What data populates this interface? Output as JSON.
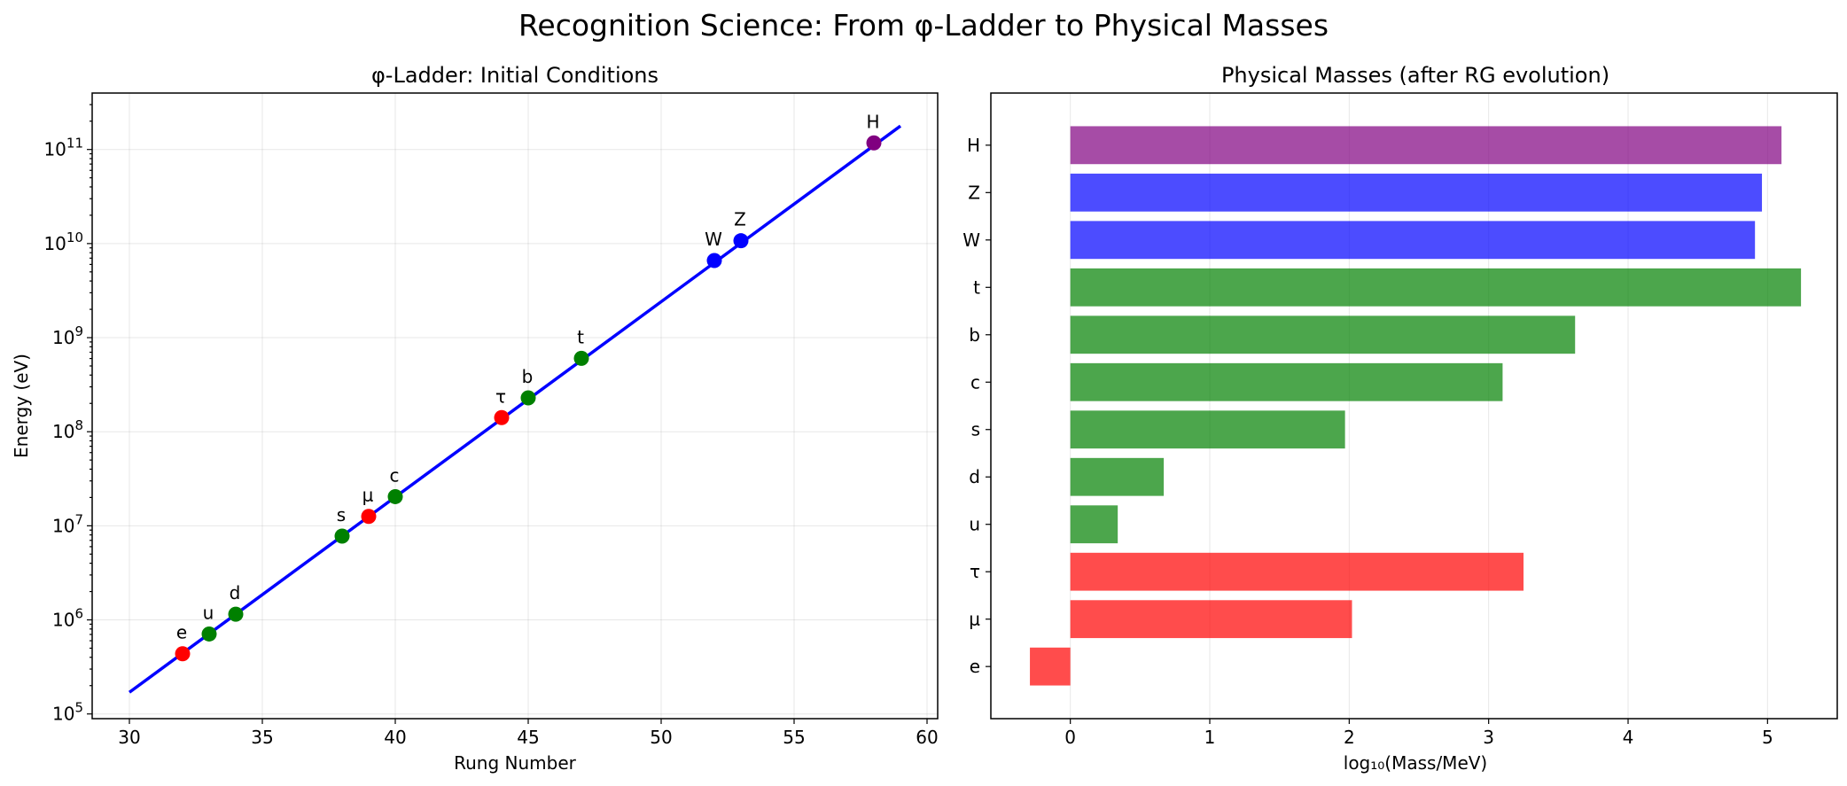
{
  "suptitle": "Recognition Science: From φ-Ladder to Physical Masses",
  "chart_data": [
    {
      "type": "scatter",
      "title": "φ-Ladder: Initial Conditions",
      "xlabel": "Rung Number",
      "ylabel": "Energy (eV)",
      "xlim": [
        28.6,
        60.4
      ],
      "ylim_log10": [
        4.95,
        11.6
      ],
      "yscale": "log",
      "grid": true,
      "xticks": [
        30,
        35,
        40,
        45,
        50,
        55,
        60
      ],
      "yticks": [
        {
          "base": "10",
          "exp": "5",
          "log10": 5
        },
        {
          "base": "10",
          "exp": "6",
          "log10": 6
        },
        {
          "base": "10",
          "exp": "7",
          "log10": 7
        },
        {
          "base": "10",
          "exp": "8",
          "log10": 8
        },
        {
          "base": "10",
          "exp": "9",
          "log10": 9
        },
        {
          "base": "10",
          "exp": "10",
          "log10": 10
        },
        {
          "base": "10",
          "exp": "11",
          "log10": 11
        }
      ],
      "line": {
        "x": [
          30,
          59
        ],
        "y_log10": [
          5.23,
          11.25
        ],
        "color": "#0000ff"
      },
      "points": [
        {
          "label": "e",
          "x": 32,
          "y_log10": 5.64,
          "color": "#ff0000"
        },
        {
          "label": "u",
          "x": 33,
          "y_log10": 5.85,
          "color": "#008000"
        },
        {
          "label": "d",
          "x": 34,
          "y_log10": 6.06,
          "color": "#008000"
        },
        {
          "label": "s",
          "x": 38,
          "y_log10": 6.89,
          "color": "#008000"
        },
        {
          "label": "μ",
          "x": 39,
          "y_log10": 7.1,
          "color": "#ff0000"
        },
        {
          "label": "c",
          "x": 40,
          "y_log10": 7.31,
          "color": "#008000"
        },
        {
          "label": "τ",
          "x": 44,
          "y_log10": 8.15,
          "color": "#ff0000"
        },
        {
          "label": "b",
          "x": 45,
          "y_log10": 8.36,
          "color": "#008000"
        },
        {
          "label": "t",
          "x": 47,
          "y_log10": 8.78,
          "color": "#008000"
        },
        {
          "label": "W",
          "x": 52,
          "y_log10": 9.82,
          "color": "#0000ff"
        },
        {
          "label": "Z",
          "x": 53,
          "y_log10": 10.03,
          "color": "#0000ff"
        },
        {
          "label": "H",
          "x": 58,
          "y_log10": 11.07,
          "color": "#800080"
        }
      ]
    },
    {
      "type": "bar",
      "orientation": "horizontal",
      "title": "Physical Masses (after RG evolution)",
      "xlabel": "log₁₀(Mass/MeV)",
      "ylabel": "",
      "xlim": [
        -0.57,
        5.5
      ],
      "grid": true,
      "xticks": [
        0,
        1,
        2,
        3,
        4,
        5
      ],
      "categories": [
        "e",
        "μ",
        "τ",
        "u",
        "d",
        "s",
        "c",
        "b",
        "t",
        "W",
        "Z",
        "H"
      ],
      "values": [
        -0.29,
        2.02,
        3.25,
        0.34,
        0.67,
        1.97,
        3.1,
        3.62,
        5.24,
        4.91,
        4.96,
        5.1
      ],
      "colors": [
        "#ff0000",
        "#ff0000",
        "#ff0000",
        "#008000",
        "#008000",
        "#008000",
        "#008000",
        "#008000",
        "#008000",
        "#0000ff",
        "#0000ff",
        "#800080"
      ],
      "alpha": 0.7
    }
  ]
}
